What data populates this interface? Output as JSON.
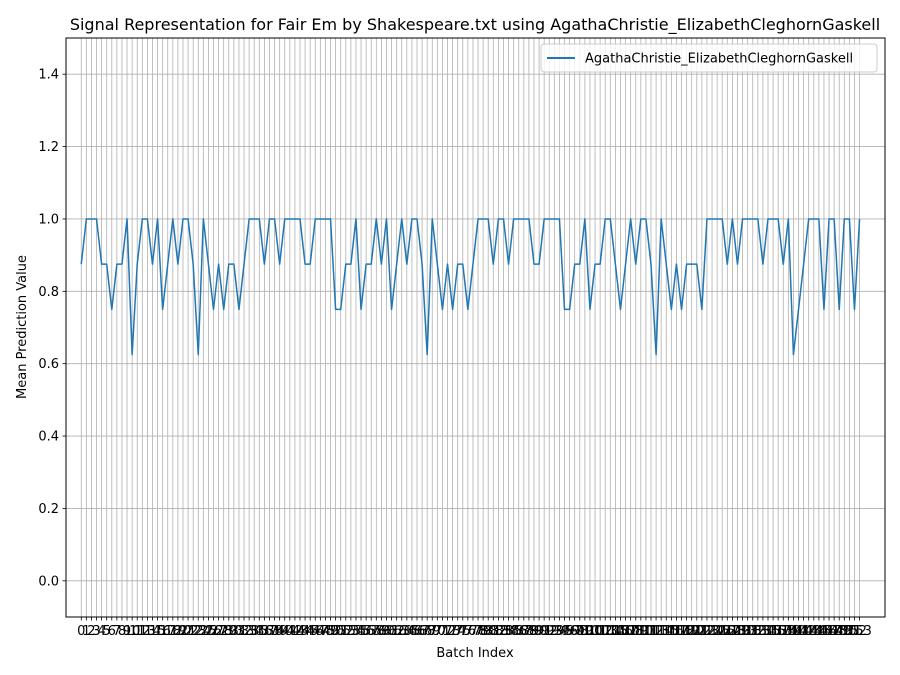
{
  "chart_data": {
    "type": "line",
    "title": "Signal Representation for Fair Em by Shakespeare.txt using AgathaChristie_ElizabethCleghornGaskell",
    "xlabel": "Batch Index",
    "ylabel": "Mean Prediction Value",
    "ylim": [
      -0.1,
      1.5
    ],
    "xlim": [
      -3,
      158
    ],
    "yticks": [
      "0.0",
      "0.2",
      "0.4",
      "0.6",
      "0.8",
      "1.0",
      "1.2",
      "1.4"
    ],
    "grid": true,
    "legend_position": "top-right",
    "colors": {
      "line": "#1f77b4",
      "grid": "#b0b0b0"
    },
    "series": [
      {
        "name": "AgathaChristie_ElizabethCleghornGaskell",
        "values": [
          0.875,
          1.0,
          1.0,
          1.0,
          0.875,
          0.875,
          0.75,
          0.875,
          0.875,
          1.0,
          0.625,
          0.875,
          1.0,
          1.0,
          0.875,
          1.0,
          0.75,
          0.875,
          1.0,
          0.875,
          1.0,
          1.0,
          0.875,
          0.625,
          1.0,
          0.875,
          0.75,
          0.875,
          0.75,
          0.875,
          0.875,
          0.75,
          0.875,
          1.0,
          1.0,
          1.0,
          0.875,
          1.0,
          1.0,
          0.875,
          1.0,
          1.0,
          1.0,
          1.0,
          0.875,
          0.875,
          1.0,
          1.0,
          1.0,
          1.0,
          0.75,
          0.75,
          0.875,
          0.875,
          1.0,
          0.75,
          0.875,
          0.875,
          1.0,
          0.875,
          1.0,
          0.75,
          0.875,
          1.0,
          0.875,
          1.0,
          1.0,
          0.875,
          0.625,
          1.0,
          0.875,
          0.75,
          0.875,
          0.75,
          0.875,
          0.875,
          0.75,
          0.875,
          1.0,
          1.0,
          1.0,
          0.875,
          1.0,
          1.0,
          0.875,
          1.0,
          1.0,
          1.0,
          1.0,
          0.875,
          0.875,
          1.0,
          1.0,
          1.0,
          1.0,
          0.75,
          0.75,
          0.875,
          0.875,
          1.0,
          0.75,
          0.875,
          0.875,
          1.0,
          1.0,
          0.875,
          0.75,
          0.875,
          1.0,
          0.875,
          1.0,
          1.0,
          0.875,
          0.625,
          1.0,
          0.875,
          0.75,
          0.875,
          0.75,
          0.875,
          0.875,
          0.875,
          0.75,
          1.0,
          1.0,
          1.0,
          1.0,
          0.875,
          1.0,
          0.875,
          1.0,
          1.0,
          1.0,
          1.0,
          0.875,
          1.0,
          1.0,
          1.0,
          0.875,
          1.0,
          0.625,
          0.75,
          0.875,
          1.0,
          1.0,
          1.0,
          0.75,
          1.0,
          1.0,
          0.75,
          1.0,
          1.0,
          0.75,
          1.0
        ]
      }
    ]
  }
}
